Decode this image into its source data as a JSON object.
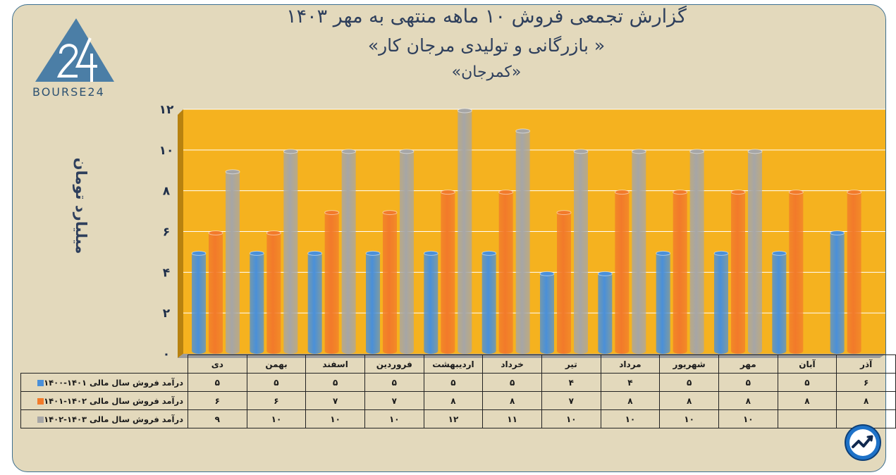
{
  "title": {
    "line1": "گزارش تجمعی فروش ۱۰ ماهه منتهی به مهر ۱۴۰۳",
    "line2": "«بازرگانی و تولیدی مرجان کار »",
    "line3": "«کمرجان»"
  },
  "logo": {
    "text": "BOURSE24",
    "icon": "bourse24-logo-icon"
  },
  "badge": {
    "icon": "trend-chart-icon"
  },
  "chart_data": {
    "type": "bar",
    "ylabel": "میلیارد تومان",
    "ylim": [
      0,
      12
    ],
    "yticks": [
      "۰",
      "۲",
      "۴",
      "۶",
      "۸",
      "۱۰",
      "۱۲"
    ],
    "categories": [
      "دی",
      "بهمن",
      "اسفند",
      "فروردین",
      "اردیبهشت",
      "خرداد",
      "تیر",
      "مرداد",
      "شهریور",
      "مهر",
      "آبان",
      "آذر"
    ],
    "series": [
      {
        "name": "درآمد فروش سال مالی ۱۴۰۱-۱۴۰۰",
        "color": "#4a90d9",
        "values": [
          5,
          5,
          5,
          5,
          5,
          5,
          4,
          4,
          5,
          5,
          5,
          6
        ],
        "labels": [
          "۵",
          "۵",
          "۵",
          "۵",
          "۵",
          "۵",
          "۴",
          "۴",
          "۵",
          "۵",
          "۵",
          "۶"
        ]
      },
      {
        "name": "درآمد فروش سال مالی ۱۴۰۲-۱۴۰۱",
        "color": "#f27a2a",
        "values": [
          6,
          6,
          7,
          7,
          8,
          8,
          7,
          8,
          8,
          8,
          8,
          8
        ],
        "labels": [
          "۶",
          "۶",
          "۷",
          "۷",
          "۸",
          "۸",
          "۷",
          "۸",
          "۸",
          "۸",
          "۸",
          "۸"
        ]
      },
      {
        "name": "درآمد فروش سال مالی ۱۴۰۳-۱۴۰۲",
        "color": "#a6a6a6",
        "values": [
          9,
          10,
          10,
          10,
          12,
          11,
          10,
          10,
          10,
          10,
          null,
          null
        ],
        "labels": [
          "۹",
          "۱۰",
          "۱۰",
          "۱۰",
          "۱۲",
          "۱۱",
          "۱۰",
          "۱۰",
          "۱۰",
          "۱۰",
          "",
          ""
        ]
      }
    ],
    "background": "#f5b21f",
    "grid": true
  }
}
